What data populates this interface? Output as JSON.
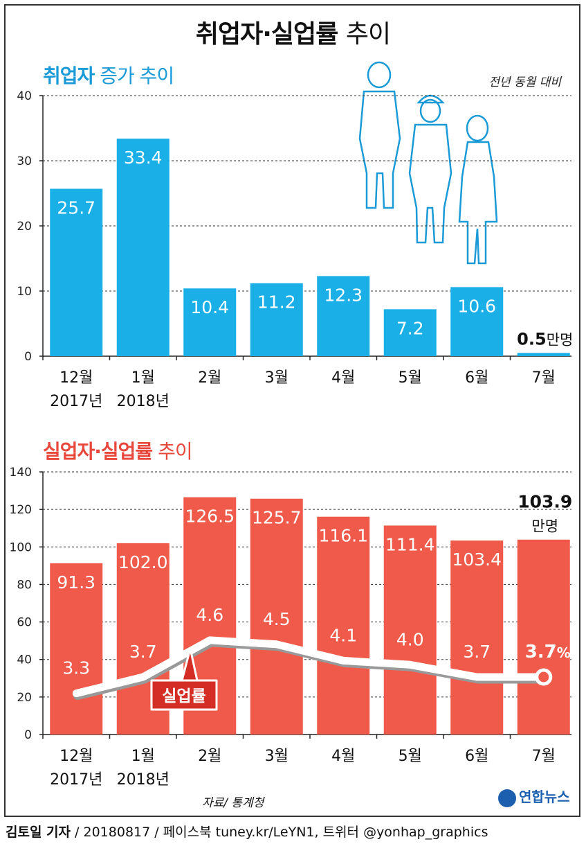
{
  "title": {
    "bold": "취업자·실업률",
    "light": "추이"
  },
  "employment": {
    "subtitle_bold": "취업자",
    "subtitle_light": "증가 추이",
    "note": "전년 동월 대비",
    "last_value": "0.5",
    "last_unit": "만명"
  },
  "unemployment": {
    "subtitle_bold": "실업자·실업률",
    "subtitle_light": "추이",
    "last_value": "103.9",
    "last_unit": "만명",
    "rate_callout": "실업률",
    "last_rate": "3.7",
    "rate_unit": "%"
  },
  "months": [
    "12월",
    "1월",
    "2월",
    "3월",
    "4월",
    "5월",
    "6월",
    "7월"
  ],
  "years": [
    "2017년",
    "2018년",
    "",
    "",
    "",
    "",
    "",
    ""
  ],
  "colors": {
    "blue": "#1aafe6",
    "blue_text": "#1a9ad6",
    "red": "#ef5a4a",
    "red_text": "#e8483c",
    "line_main": "#ffffff",
    "line_shadow": "#999999"
  },
  "chart_data": [
    {
      "type": "bar",
      "title": "취업자 증가 추이",
      "categories": [
        "12월 2017년",
        "1월 2018년",
        "2월",
        "3월",
        "4월",
        "5월",
        "6월",
        "7월"
      ],
      "values": [
        25.7,
        33.4,
        10.4,
        11.2,
        12.3,
        7.2,
        10.6,
        0.5
      ],
      "labels": [
        "25.7",
        "33.4",
        "10.4",
        "11.2",
        "12.3",
        "7.2",
        "10.6",
        "0.5"
      ],
      "ylim": [
        0,
        40
      ],
      "yticks": [
        0,
        10,
        20,
        30,
        40
      ],
      "unit": "만명"
    },
    {
      "type": "bar",
      "title": "실업자·실업률 추이",
      "categories": [
        "12월 2017년",
        "1월 2018년",
        "2월",
        "3월",
        "4월",
        "5월",
        "6월",
        "7월"
      ],
      "series": [
        {
          "name": "실업자",
          "values": [
            91.3,
            102.0,
            126.5,
            125.7,
            116.1,
            111.4,
            103.4,
            103.9
          ],
          "labels": [
            "91.3",
            "102.0",
            "126.5",
            "125.7",
            "116.1",
            "111.4",
            "103.4",
            "103.9"
          ]
        },
        {
          "name": "실업률",
          "type": "line",
          "values": [
            3.3,
            3.7,
            4.6,
            4.5,
            4.1,
            4.0,
            3.7,
            3.7
          ],
          "labels": [
            "3.3",
            "3.7",
            "4.6",
            "4.5",
            "4.1",
            "4.0",
            "3.7",
            "3.7"
          ]
        }
      ],
      "ylim": [
        0,
        140
      ],
      "yticks": [
        0,
        20,
        40,
        60,
        80,
        100,
        120,
        140
      ],
      "unit": "만명"
    }
  ],
  "source": "자료/ 통계청",
  "logo": "연합뉴스",
  "footer": {
    "author": "김토일 기자",
    "rest": " / 20180817 / 페이스북 tuney.kr/LeYN1, 트위터 @yonhap_graphics"
  }
}
